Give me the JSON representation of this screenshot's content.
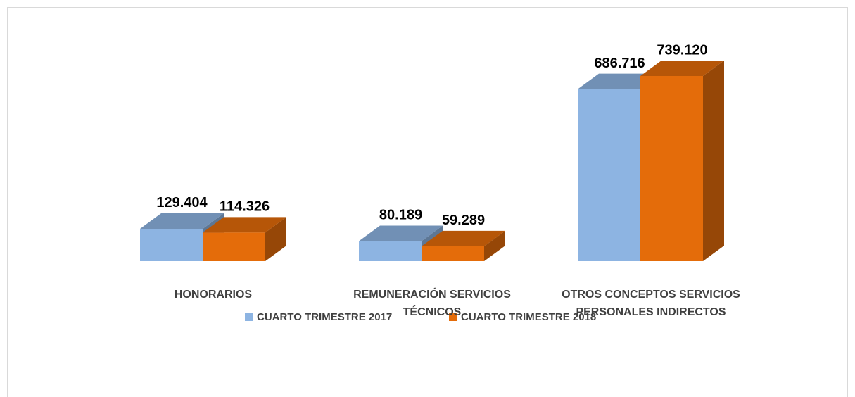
{
  "chart_data": {
    "type": "bar3d",
    "categories": [
      "HONORARIOS",
      "REMUNERACIÓN SERVICIOS TÉCNICOS",
      "OTROS CONCEPTOS SERVICIOS PERSONALES INDIRECTOS"
    ],
    "series": [
      {
        "name": "CUARTO TRIMESTRE 2017",
        "color": "#8db4e2",
        "values": [
          129404,
          80189,
          686716
        ],
        "value_labels": [
          "129.404",
          "80.189",
          "686.716"
        ]
      },
      {
        "name": "CUARTO TRIMESTRE 2018",
        "color": "#e46c0a",
        "values": [
          114326,
          59289,
          739120
        ],
        "value_labels": [
          "114.326",
          "59.289",
          "739.120"
        ]
      }
    ]
  }
}
